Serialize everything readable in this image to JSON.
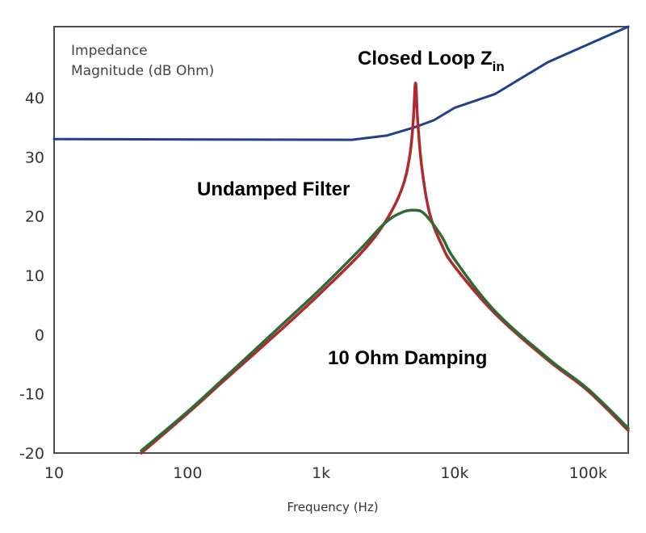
{
  "chart_data": {
    "type": "line",
    "xscale": "log",
    "xlabel": "Frequency (Hz)",
    "ylabel_lines": [
      "Impedance",
      "Magnitude (dB Ohm)"
    ],
    "xlim": [
      10,
      200000
    ],
    "ylim": [
      -20,
      52
    ],
    "x_ticks": [
      {
        "value": 10,
        "label": "10"
      },
      {
        "value": 100,
        "label": "100"
      },
      {
        "value": 1000,
        "label": "1k"
      },
      {
        "value": 10000,
        "label": "10k"
      },
      {
        "value": 100000,
        "label": "100k"
      }
    ],
    "y_ticks": [
      {
        "value": 40,
        "label": "40"
      },
      {
        "value": 30,
        "label": "30"
      },
      {
        "value": 20,
        "label": "20"
      },
      {
        "value": 10,
        "label": "10"
      },
      {
        "value": 0,
        "label": "0"
      },
      {
        "value": -10,
        "label": "-10"
      },
      {
        "value": -20,
        "label": "-20"
      }
    ],
    "grid": false,
    "series": [
      {
        "name": "Closed Loop Z",
        "name_subscript": "in",
        "color": "#1f3f8f",
        "x": [
          10,
          1700,
          3100,
          5000,
          7000,
          10000,
          20000,
          50000,
          200000
        ],
        "y": [
          33.0,
          32.9,
          33.6,
          35.0,
          36.2,
          38.3,
          40.6,
          46.0,
          52.0
        ]
      },
      {
        "name": "Undamped Filter",
        "color": "#b0292e",
        "x": [
          45,
          100,
          200,
          500,
          1000,
          2000,
          3000,
          4000,
          4600,
          4900,
          5100,
          5300,
          5700,
          6500,
          8000,
          10000,
          20000,
          50000,
          100000,
          200000
        ],
        "y": [
          -20.0,
          -13.3,
          -7.2,
          0.8,
          7.1,
          13.8,
          18.9,
          24.4,
          30.0,
          36.0,
          42.5,
          36.0,
          28.0,
          20.5,
          15.2,
          11.5,
          3.6,
          -4.3,
          -9.5,
          -16.2
        ]
      },
      {
        "name": "10 Ohm Damping",
        "color": "#2e6b34",
        "x": [
          45,
          100,
          200,
          500,
          1000,
          2000,
          3000,
          4000,
          5000,
          6000,
          8000,
          10000,
          20000,
          50000,
          100000,
          200000
        ],
        "y": [
          -19.6,
          -13.0,
          -6.8,
          1.5,
          7.8,
          14.6,
          18.8,
          20.6,
          21.0,
          20.3,
          16.6,
          12.7,
          4.0,
          -4.0,
          -9.2,
          -15.8
        ]
      }
    ],
    "annotations": [
      {
        "text": "Closed Loop Z",
        "subscript": "in",
        "color": "#1f3f8f"
      },
      {
        "text": "Undamped Filter",
        "color": "#b0292e"
      },
      {
        "text": "10 Ohm Damping",
        "color": "#2e6b34"
      }
    ]
  }
}
